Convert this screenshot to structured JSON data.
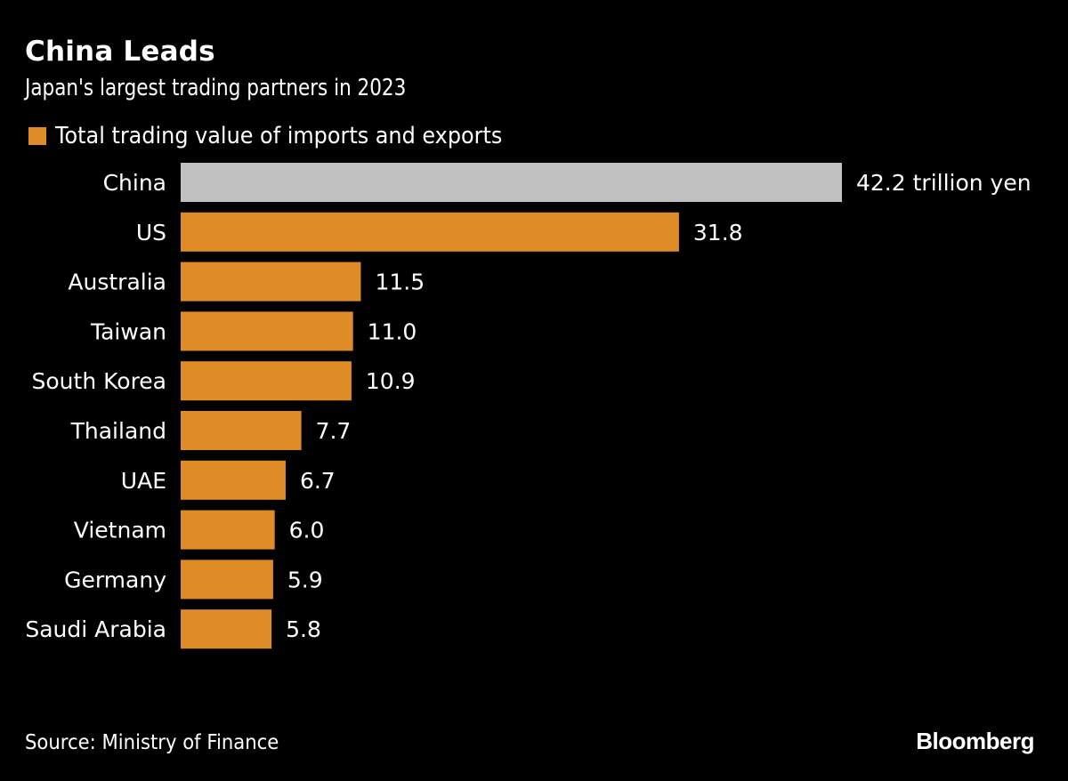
{
  "title": "China Leads",
  "subtitle": "Japan's largest trading partners in 2023",
  "legend": {
    "label": "Total trading value of imports and exports",
    "color": "#e08c26"
  },
  "source": "Source: Ministry of Finance",
  "brand": "Bloomberg",
  "colors": {
    "highlight": "#c0c0c0",
    "default": "#e08c26",
    "text": "#ffffff",
    "background": "#000000"
  },
  "chart_data": {
    "type": "bar",
    "orientation": "horizontal",
    "title": "China Leads",
    "subtitle": "Japan's largest trading partners in 2023",
    "xlabel": "",
    "ylabel": "",
    "unit": "trillion yen",
    "categories": [
      "China",
      "US",
      "Australia",
      "Taiwan",
      "South Korea",
      "Thailand",
      "UAE",
      "Vietnam",
      "Germany",
      "Saudi Arabia"
    ],
    "values": [
      42.2,
      31.8,
      11.5,
      11.0,
      10.9,
      7.7,
      6.7,
      6.0,
      5.9,
      5.8
    ],
    "value_labels": [
      "42.2 trillion yen",
      "31.8",
      "11.5",
      "11.0",
      "10.9",
      "7.7",
      "6.7",
      "6.0",
      "5.9",
      "5.8"
    ],
    "highlight_category": "China",
    "series": [
      {
        "name": "Total trading value of imports and exports",
        "values": [
          42.2,
          31.8,
          11.5,
          11.0,
          10.9,
          7.7,
          6.7,
          6.0,
          5.9,
          5.8
        ]
      }
    ],
    "xlim": [
      0,
      42.2
    ],
    "grid": false,
    "legend_position": "top-left"
  }
}
